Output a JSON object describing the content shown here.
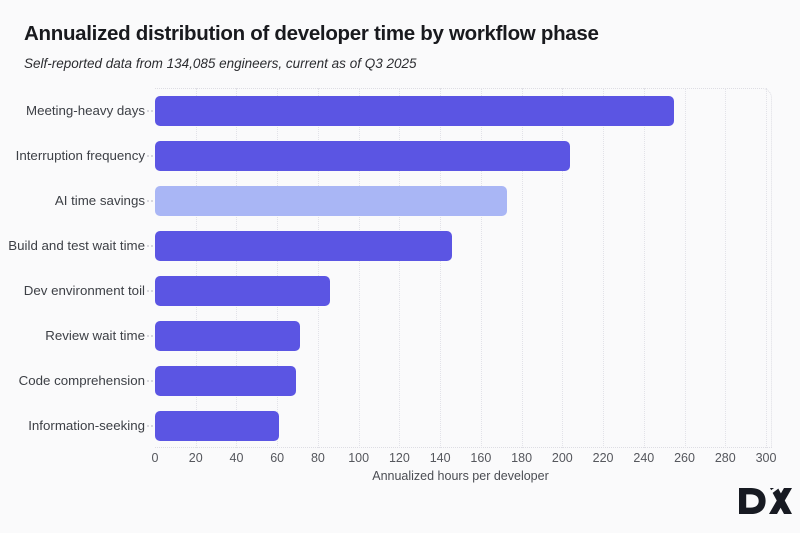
{
  "header": {
    "title": "Annualized distribution of developer time by workflow phase",
    "subtitle": "Self-reported data from 134,085 engineers, current as of Q3 2025"
  },
  "chart_data": {
    "type": "bar",
    "orientation": "horizontal",
    "title": "Annualized distribution of developer time by workflow phase",
    "subtitle": "Self-reported data from 134,085 engineers, current as of Q3 2025",
    "categories": [
      "Meeting-heavy days",
      "Interruption frequency",
      "AI time savings",
      "Build and test wait time",
      "Dev environment toil",
      "Review wait time",
      "Code comprehension",
      "Information-seeking"
    ],
    "values": [
      255,
      204,
      173,
      146,
      86,
      71,
      69,
      61
    ],
    "bar_colors": [
      "#5b55e3",
      "#5b55e3",
      "#a9b6f5",
      "#5b55e3",
      "#5b55e3",
      "#5b55e3",
      "#5b55e3",
      "#5b55e3"
    ],
    "xlabel": "Annualized hours per developer",
    "ylabel": "",
    "xlim": [
      0,
      300
    ],
    "xticks": [
      0,
      20,
      40,
      60,
      80,
      100,
      120,
      140,
      160,
      180,
      200,
      220,
      240,
      260,
      280,
      300
    ],
    "grid": "vertical-dotted",
    "legend": "none"
  },
  "colors": {
    "background": "#fafafb",
    "bar_primary": "#5b55e3",
    "bar_highlight": "#a9b6f5",
    "gridline": "#e2e2e8",
    "logo": "#171a22"
  },
  "footer": {
    "logo_text": "DX"
  }
}
